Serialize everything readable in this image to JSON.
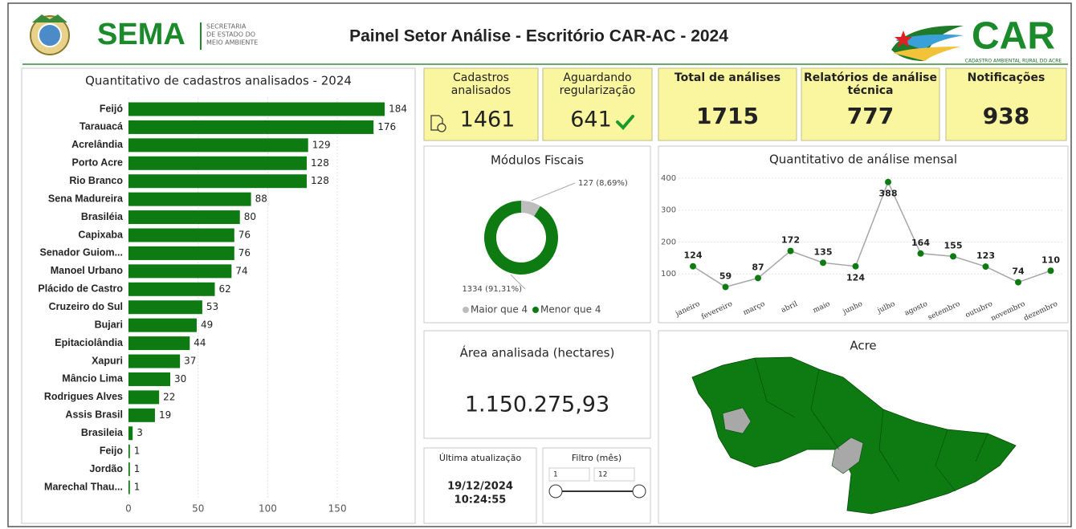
{
  "header": {
    "logo_text": "SEMA",
    "logo_subtitle": [
      "SECRETARIA",
      "DE ESTADO DO",
      "MEIO AMBIENTE"
    ],
    "title": "Painel Setor Análise - Escritório CAR-AC - 2024",
    "car_logo": "CAR",
    "car_subtitle": "CADASTRO AMBIENTAL RURAL DO ACRE"
  },
  "kpis": [
    {
      "label": [
        "Cadastros",
        "analisados"
      ],
      "value": 1461
    },
    {
      "label": [
        "Aguardando",
        "regularização"
      ],
      "value": 641
    },
    {
      "label": [
        "Total de análises"
      ],
      "value": 1715
    },
    {
      "label": [
        "Relatórios de análise",
        "técnica"
      ],
      "value": 777
    },
    {
      "label": [
        "Notificações"
      ],
      "value": 938
    }
  ],
  "chart_data": [
    {
      "type": "hbar",
      "title": "Quantitativo de cadastros analisados - 2024",
      "categories": [
        "Feijó",
        "Tarauacá",
        "Acrelândia",
        "Porto Acre",
        "Rio Branco",
        "Sena Madureira",
        "Brasiléia",
        "Capixaba",
        "Senador Guiom...",
        "Manoel Urbano",
        "Plácido de Castro",
        "Cruzeiro do Sul",
        "Bujari",
        "Epitaciolândia",
        "Xapuri",
        "Mâncio Lima",
        "Rodrigues Alves",
        "Assis Brasil",
        "Brasileia",
        "Feijo",
        "Jordão",
        "Marechal Thau..."
      ],
      "values": [
        184,
        176,
        129,
        128,
        128,
        88,
        80,
        76,
        76,
        74,
        62,
        53,
        49,
        44,
        37,
        30,
        22,
        19,
        3,
        1,
        1,
        1
      ],
      "color": "#0e7a12",
      "xlim": [
        0,
        190
      ],
      "xticks": [
        0,
        50,
        100,
        150
      ],
      "grid": true
    },
    {
      "type": "donut",
      "title": "Módulos Fiscais",
      "categories": [
        "Maior que 4",
        "Menor que 4"
      ],
      "values": [
        127,
        1334
      ],
      "value_labels": [
        "127 (8,69%)",
        "1334 (91,31%)"
      ],
      "colors": [
        "#bdbdbd",
        "#0e7a12"
      ],
      "legend": "bottom"
    },
    {
      "type": "line",
      "title": "Quantitativo de análise mensal",
      "categories": [
        "janeiro",
        "fevereiro",
        "março",
        "abril",
        "maio",
        "junho",
        "julho",
        "agosto",
        "setembro",
        "outubro",
        "novembro",
        "dezembro"
      ],
      "values": [
        124,
        59,
        87,
        172,
        135,
        124,
        388,
        164,
        155,
        123,
        74,
        110
      ],
      "color": "#a6a6a6",
      "marker_color": "#0e7a12",
      "ylim": [
        0,
        420
      ],
      "yticks": [
        100,
        200,
        300,
        400
      ],
      "grid": true
    }
  ],
  "area": {
    "title": "Área analisada (hectares)",
    "value": "1.150.275,93"
  },
  "update": {
    "title": "Última atualização",
    "date": "19/12/2024",
    "time": "10:24:55"
  },
  "filter": {
    "title": "Filtro (mês)",
    "min": "1",
    "max": "12"
  },
  "map": {
    "title": "Acre"
  }
}
